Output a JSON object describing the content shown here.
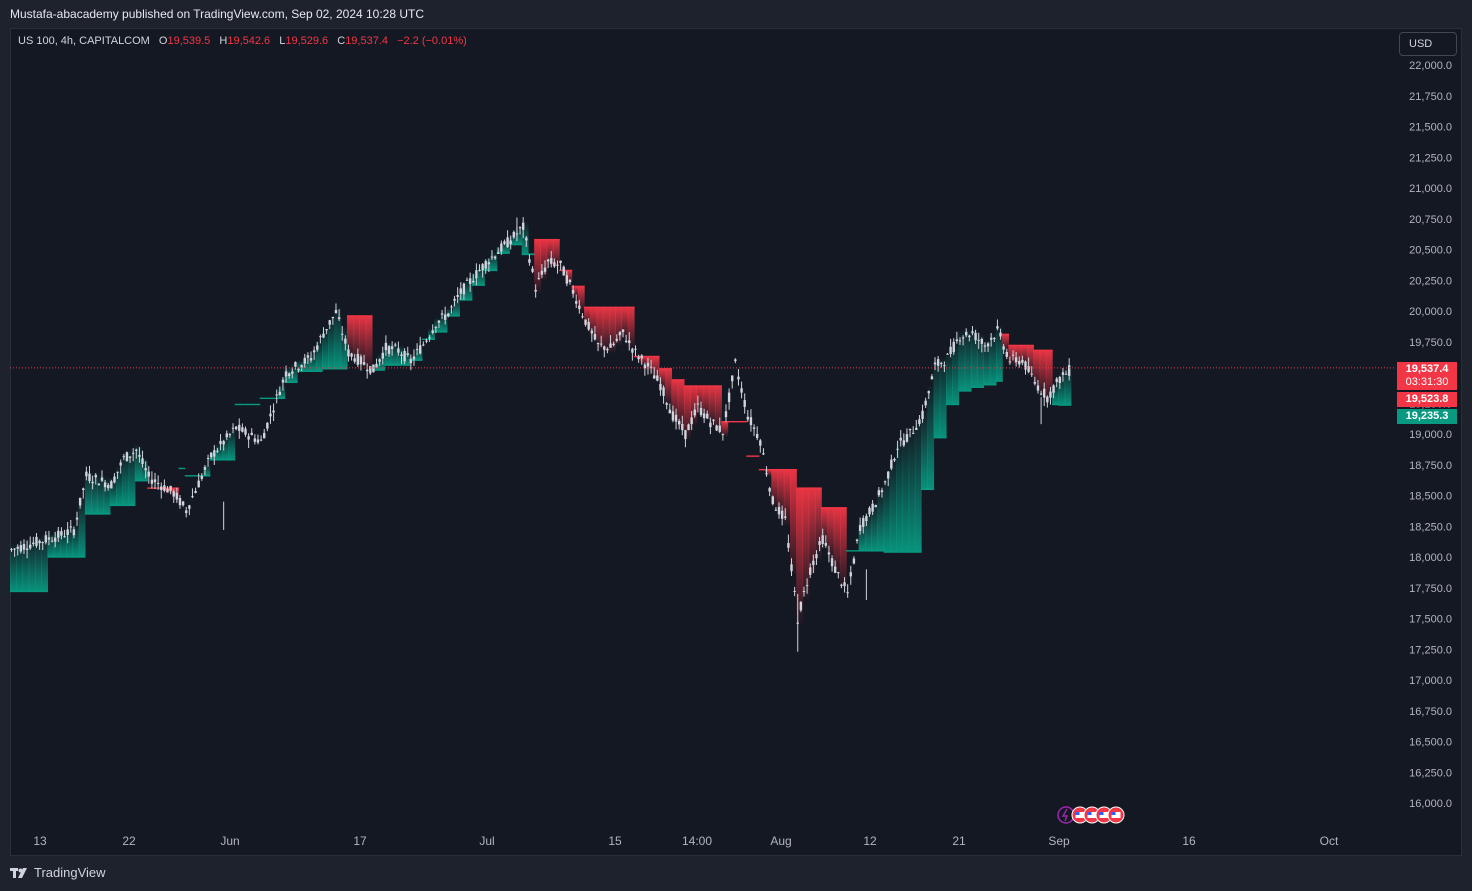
{
  "header": {
    "published_text": "Mustafa-abacademy published on TradingView.com, Sep 02, 2024 10:28 UTC"
  },
  "legend": {
    "symbol": "US 100, 4h, CAPITALCOM",
    "o_label": "O",
    "o_value": "19,539.5",
    "h_label": "H",
    "h_value": "19,542.6",
    "l_label": "L",
    "l_value": "19,529.6",
    "c_label": "C",
    "c_value": "19,537.4",
    "change": "−2.2 (−0.01%)"
  },
  "currency": "USD",
  "price_tags": {
    "last_price": "19,537.4",
    "countdown": "03:31:30",
    "upper_band": "19,523.8",
    "lower_band": "19,235.3"
  },
  "footer": {
    "brand": "TradingView"
  },
  "colors": {
    "bull": "#089981",
    "bear": "#f23645",
    "candle": "#d1d4dc",
    "background": "#141823",
    "axis_text": "#b2b5be"
  },
  "chart_data": {
    "type": "candlestick",
    "ylim": [
      15900,
      22100
    ],
    "y_ticks": [
      22000,
      21750,
      21500,
      21250,
      21000,
      20750,
      20500,
      20250,
      20000,
      19750,
      19500,
      19250,
      19000,
      18750,
      18500,
      18250,
      18000,
      17750,
      17500,
      17250,
      17000,
      16750,
      16500,
      16250,
      16000
    ],
    "y_tick_labels": [
      "22,000.0",
      "21,750.0",
      "21,500.0",
      "21,250.0",
      "21,000.0",
      "20,750.0",
      "20,500.0",
      "20,250.0",
      "20,000.0",
      "19,750.0",
      "19,500.0",
      "19,250.0",
      "19,000.0",
      "18,750.0",
      "18,500.0",
      "18,250.0",
      "18,000.0",
      "17,750.0",
      "17,500.0",
      "17,250.0",
      "17,000.0",
      "16,750.0",
      "16,500.0",
      "16,250.0",
      "16,000.0"
    ],
    "x_labels": [
      "13",
      "22",
      "Jun",
      "17",
      "Jul",
      "15",
      "14:00",
      "Aug",
      "12",
      "21",
      "Sep",
      "16",
      "Oct"
    ],
    "last_price": 19537.4,
    "price_path": [
      [
        0,
        18060
      ],
      [
        8,
        18180
      ],
      [
        10,
        18220
      ],
      [
        12,
        18660
      ],
      [
        16,
        18590
      ],
      [
        18,
        18800
      ],
      [
        20,
        18870
      ],
      [
        22,
        18650
      ],
      [
        26,
        18520
      ],
      [
        28,
        18380
      ],
      [
        32,
        18820
      ],
      [
        36,
        19050
      ],
      [
        40,
        18940
      ],
      [
        44,
        19500
      ],
      [
        48,
        19620
      ],
      [
        50,
        19820
      ],
      [
        52,
        19990
      ],
      [
        54,
        19660
      ],
      [
        58,
        19520
      ],
      [
        60,
        19700
      ],
      [
        62,
        19680
      ],
      [
        64,
        19590
      ],
      [
        66,
        19730
      ],
      [
        68,
        19900
      ],
      [
        70,
        19980
      ],
      [
        72,
        20150
      ],
      [
        76,
        20390
      ],
      [
        80,
        20580
      ],
      [
        82,
        20680
      ],
      [
        84,
        20190
      ],
      [
        86,
        20400
      ],
      [
        88,
        20370
      ],
      [
        90,
        20160
      ],
      [
        92,
        19920
      ],
      [
        94,
        19720
      ],
      [
        96,
        19700
      ],
      [
        98,
        19820
      ],
      [
        100,
        19660
      ],
      [
        102,
        19550
      ],
      [
        104,
        19400
      ],
      [
        106,
        19150
      ],
      [
        108,
        19000
      ],
      [
        110,
        19220
      ],
      [
        112,
        19100
      ],
      [
        114,
        19020
      ],
      [
        116,
        19570
      ],
      [
        118,
        19150
      ],
      [
        120,
        18950
      ],
      [
        122,
        18450
      ],
      [
        124,
        18300
      ],
      [
        126,
        17500
      ],
      [
        128,
        17900
      ],
      [
        130,
        18150
      ],
      [
        132,
        17900
      ],
      [
        134,
        17700
      ],
      [
        136,
        18250
      ],
      [
        138,
        18400
      ],
      [
        140,
        18600
      ],
      [
        142,
        18900
      ],
      [
        144,
        19000
      ],
      [
        146,
        19150
      ],
      [
        148,
        19550
      ],
      [
        150,
        19620
      ],
      [
        152,
        19800
      ],
      [
        154,
        19820
      ],
      [
        156,
        19720
      ],
      [
        158,
        19840
      ],
      [
        160,
        19600
      ],
      [
        162,
        19600
      ],
      [
        164,
        19420
      ],
      [
        166,
        19300
      ],
      [
        168,
        19450
      ],
      [
        170,
        19537
      ]
    ],
    "upper_band_path": [
      [
        0,
        17840
      ],
      [
        12,
        18300
      ],
      [
        16,
        18420
      ],
      [
        20,
        18420
      ],
      [
        22,
        18560
      ],
      [
        26,
        18560
      ],
      [
        28,
        18860
      ],
      [
        30,
        18860
      ],
      [
        32,
        19280
      ],
      [
        36,
        19420
      ],
      [
        40,
        19550
      ],
      [
        44,
        19710
      ],
      [
        48,
        19780
      ],
      [
        50,
        19960
      ],
      [
        52,
        19960
      ],
      [
        56,
        19960
      ],
      [
        60,
        19700
      ],
      [
        64,
        19710
      ],
      [
        66,
        19840
      ],
      [
        68,
        19880
      ],
      [
        70,
        20140
      ],
      [
        72,
        20280
      ],
      [
        74,
        20420
      ],
      [
        78,
        20560
      ],
      [
        80,
        20560
      ],
      [
        84,
        20580
      ],
      [
        86,
        20580
      ],
      [
        88,
        20330
      ],
      [
        90,
        20200
      ],
      [
        92,
        20030
      ],
      [
        96,
        20030
      ],
      [
        98,
        20030
      ],
      [
        100,
        19630
      ],
      [
        104,
        19530
      ],
      [
        106,
        19440
      ],
      [
        108,
        19390
      ],
      [
        112,
        19390
      ],
      [
        114,
        19100
      ],
      [
        116,
        19100
      ],
      [
        118,
        18820
      ],
      [
        120,
        18710
      ],
      [
        124,
        18710
      ],
      [
        126,
        18560
      ],
      [
        128,
        18560
      ],
      [
        130,
        18400
      ],
      [
        132,
        18400
      ],
      [
        134,
        18250
      ],
      [
        138,
        18200
      ],
      [
        140,
        18200
      ],
      [
        142,
        18500
      ],
      [
        144,
        18500
      ],
      [
        146,
        18950
      ],
      [
        148,
        19300
      ],
      [
        150,
        19500
      ],
      [
        152,
        19570
      ],
      [
        154,
        19700
      ],
      [
        156,
        19810
      ],
      [
        158,
        19810
      ],
      [
        160,
        19720
      ],
      [
        162,
        19720
      ],
      [
        164,
        19680
      ],
      [
        166,
        19680
      ],
      [
        168,
        19600
      ],
      [
        170,
        19523
      ]
    ],
    "lower_band_path": [
      [
        0,
        17720
      ],
      [
        4,
        17720
      ],
      [
        6,
        18000
      ],
      [
        10,
        18000
      ],
      [
        12,
        18350
      ],
      [
        14,
        18350
      ],
      [
        16,
        18420
      ],
      [
        20,
        18620
      ],
      [
        22,
        18720
      ],
      [
        26,
        18720
      ],
      [
        28,
        18660
      ],
      [
        32,
        18790
      ],
      [
        36,
        19240
      ],
      [
        38,
        19240
      ],
      [
        40,
        19290
      ],
      [
        44,
        19420
      ],
      [
        46,
        19510
      ],
      [
        50,
        19530
      ],
      [
        54,
        19520
      ],
      [
        58,
        19520
      ],
      [
        60,
        19560
      ],
      [
        62,
        19560
      ],
      [
        64,
        19600
      ],
      [
        66,
        19770
      ],
      [
        68,
        19830
      ],
      [
        70,
        19960
      ],
      [
        72,
        20090
      ],
      [
        74,
        20210
      ],
      [
        76,
        20330
      ],
      [
        78,
        20470
      ],
      [
        80,
        20540
      ],
      [
        82,
        20460
      ],
      [
        84,
        20230
      ],
      [
        86,
        20230
      ],
      [
        88,
        20130
      ],
      [
        90,
        19810
      ],
      [
        92,
        19710
      ],
      [
        94,
        19570
      ],
      [
        96,
        19570
      ],
      [
        98,
        19570
      ],
      [
        100,
        19350
      ],
      [
        104,
        19190
      ],
      [
        106,
        19060
      ],
      [
        108,
        18990
      ],
      [
        112,
        19050
      ],
      [
        114,
        19050
      ],
      [
        116,
        19020
      ],
      [
        118,
        18450
      ],
      [
        120,
        18050
      ],
      [
        124,
        18050
      ],
      [
        126,
        18020
      ],
      [
        128,
        17960
      ],
      [
        130,
        17910
      ],
      [
        132,
        17910
      ],
      [
        134,
        18050
      ],
      [
        136,
        18050
      ],
      [
        138,
        18050
      ],
      [
        140,
        18040
      ],
      [
        142,
        18040
      ],
      [
        144,
        18040
      ],
      [
        146,
        18550
      ],
      [
        148,
        18970
      ],
      [
        150,
        19240
      ],
      [
        152,
        19350
      ],
      [
        154,
        19380
      ],
      [
        156,
        19400
      ],
      [
        158,
        19430
      ],
      [
        160,
        19430
      ],
      [
        162,
        19430
      ],
      [
        164,
        19240
      ],
      [
        166,
        19240
      ],
      [
        168,
        19235
      ],
      [
        170,
        19235
      ]
    ]
  }
}
